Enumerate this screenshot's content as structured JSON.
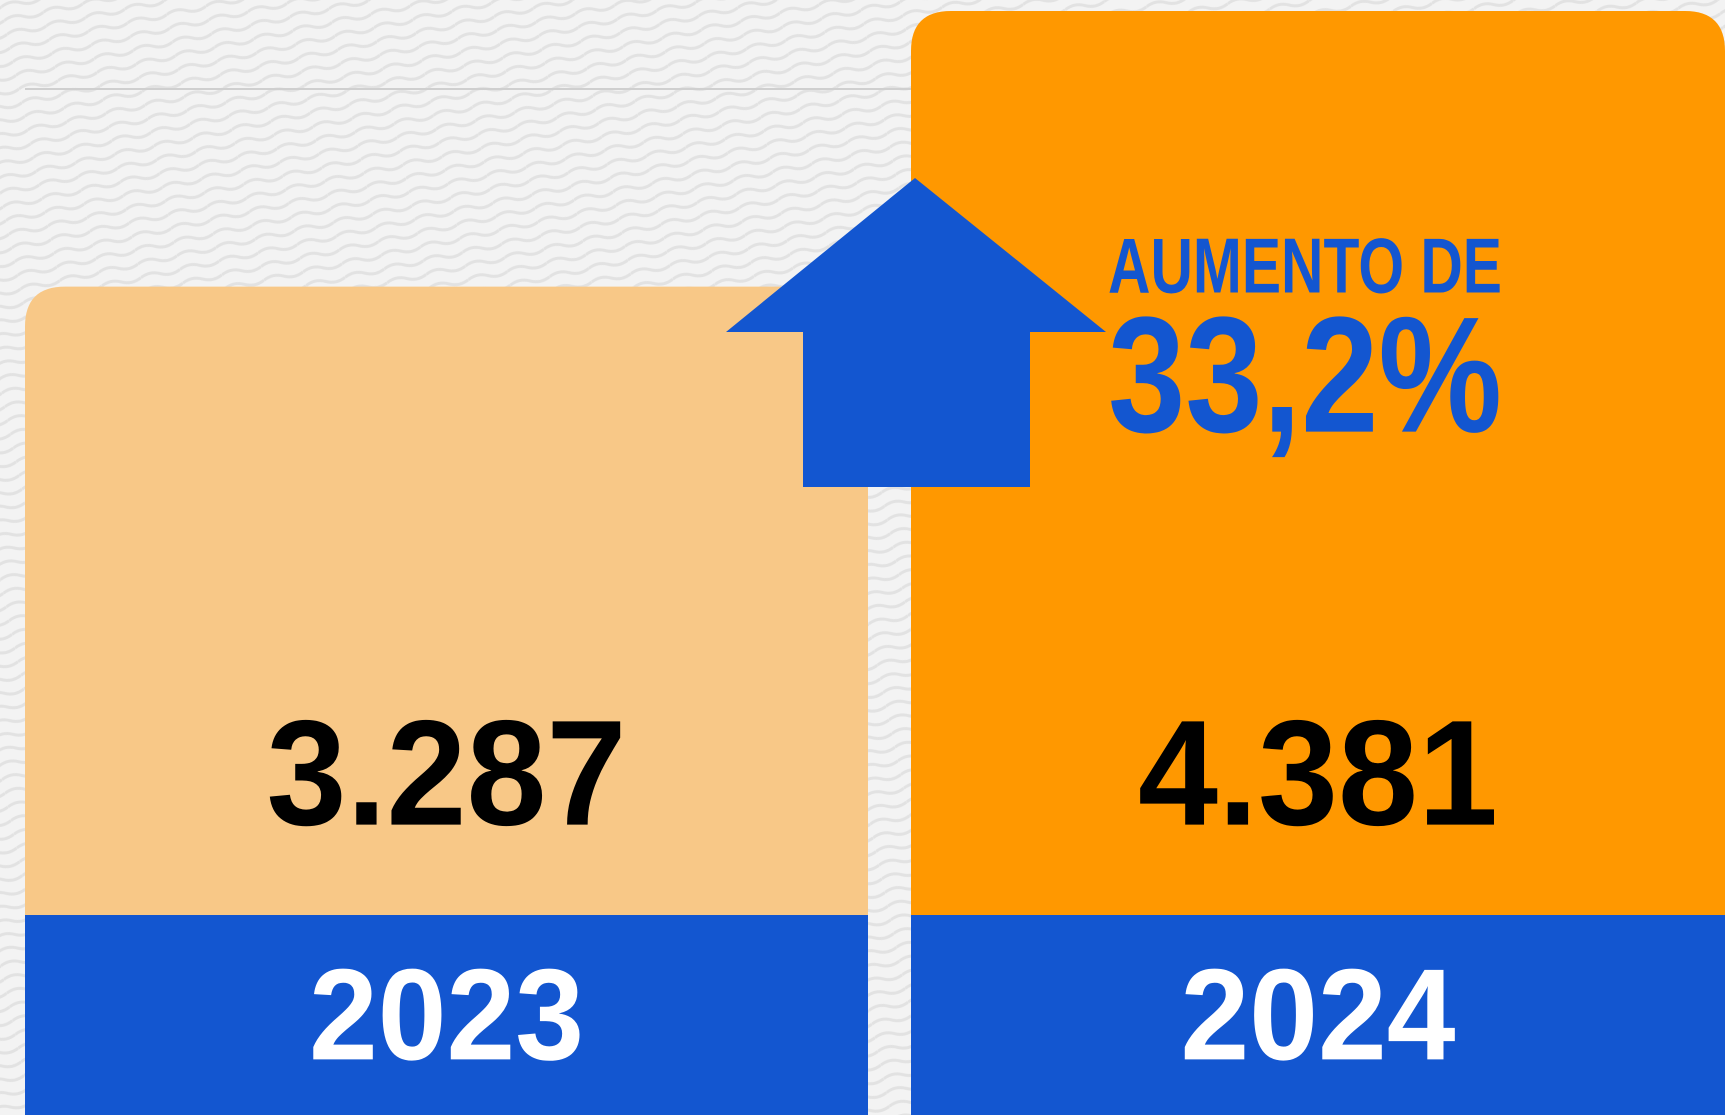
{
  "chart_data": {
    "type": "bar",
    "categories": [
      "2023",
      "2024"
    ],
    "values": [
      3287,
      4381
    ],
    "value_labels": [
      "3.287",
      "4.381"
    ],
    "colors": [
      "#f8c887",
      "#ff9800"
    ],
    "band_color": "#1356d0",
    "annotations": [
      "AUMENTO DE",
      "33,2%"
    ]
  }
}
